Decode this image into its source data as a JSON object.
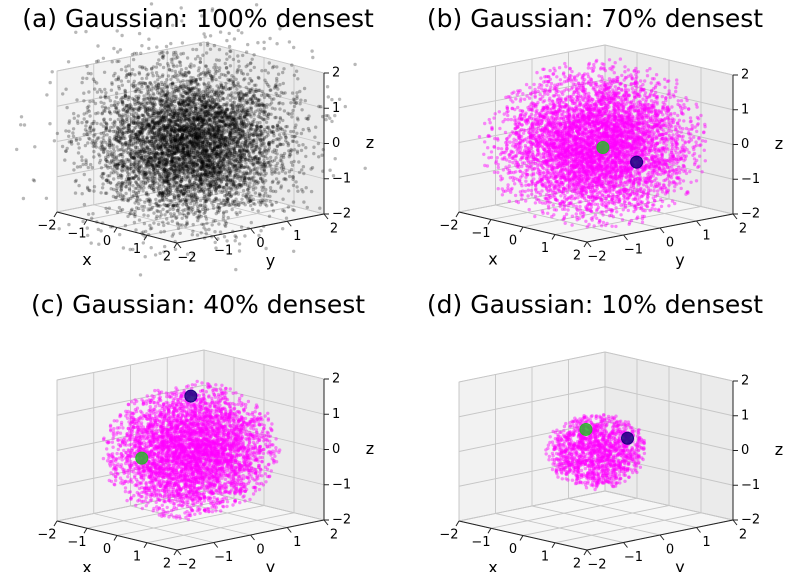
{
  "chart_data": [
    {
      "type": "scatter",
      "projection": "3d",
      "title": "(a) Gaussian: 100% densest",
      "xlabel": "x",
      "ylabel": "y",
      "zlabel": "z",
      "xlim": [
        -2,
        2
      ],
      "ylim": [
        -2,
        2
      ],
      "zlim": [
        -2,
        2
      ],
      "xticks": [
        "−2",
        "−1",
        "0",
        "1",
        "2"
      ],
      "yticks": [
        "−2",
        "−1",
        "0",
        "1",
        "2"
      ],
      "zticks": [
        "−2",
        "−1",
        "0",
        "1",
        "2"
      ],
      "grid": true,
      "series": [
        {
          "role": "points",
          "color": "#000000",
          "fraction_kept": 1.0,
          "distribution": "standard normal (3D)"
        }
      ]
    },
    {
      "type": "scatter",
      "projection": "3d",
      "title": "(b) Gaussian: 70% densest",
      "xlabel": "x",
      "ylabel": "y",
      "zlabel": "z",
      "xlim": [
        -2,
        2
      ],
      "ylim": [
        -2,
        2
      ],
      "zlim": [
        -2,
        2
      ],
      "xticks": [
        "−2",
        "−1",
        "0",
        "1",
        "2"
      ],
      "yticks": [
        "−2",
        "−1",
        "0",
        "1",
        "2"
      ],
      "zticks": [
        "−2",
        "−1",
        "0",
        "1",
        "2"
      ],
      "grid": true,
      "series": [
        {
          "role": "points",
          "color": "#ff00ff",
          "fraction_kept": 0.7,
          "distribution": "standard normal (3D)"
        },
        {
          "role": "highlight",
          "color": "#1a0080",
          "x": -0.1,
          "y": 1.2,
          "z": -0.8
        },
        {
          "role": "highlight",
          "color": "#2bb52b",
          "x": 0.9,
          "y": -0.6,
          "z": 0.2
        }
      ]
    },
    {
      "type": "scatter",
      "projection": "3d",
      "title": "(c) Gaussian: 40% densest",
      "xlabel": "x",
      "ylabel": "y",
      "zlabel": "z",
      "xlim": [
        -2,
        2
      ],
      "ylim": [
        -2,
        2
      ],
      "zlim": [
        -2,
        2
      ],
      "xticks": [
        "−2",
        "−1",
        "0",
        "1",
        "2"
      ],
      "yticks": [
        "−2",
        "−1",
        "0",
        "1",
        "2"
      ],
      "zticks": [
        "−2",
        "−1",
        "0",
        "1",
        "2"
      ],
      "grid": true,
      "series": [
        {
          "role": "points",
          "color": "#ff00ff",
          "fraction_kept": 0.4,
          "distribution": "standard normal (3D)"
        },
        {
          "role": "highlight",
          "color": "#1a0080",
          "x": -0.6,
          "y": 0.5,
          "z": 1.3
        },
        {
          "role": "highlight",
          "color": "#2bb52b",
          "x": -0.4,
          "y": -1.0,
          "z": -0.1
        }
      ]
    },
    {
      "type": "scatter",
      "projection": "3d",
      "title": "(d) Gaussian: 10% densest",
      "xlabel": "x",
      "ylabel": "y",
      "zlabel": "z",
      "xlim": [
        -2,
        2
      ],
      "ylim": [
        -2,
        2
      ],
      "zlim": [
        -2,
        2
      ],
      "xticks": [
        "−2",
        "−1",
        "0",
        "1",
        "2"
      ],
      "yticks": [
        "−2",
        "−1",
        "0",
        "1",
        "2"
      ],
      "zticks": [
        "−2",
        "−1",
        "0",
        "1",
        "2"
      ],
      "grid": true,
      "series": [
        {
          "role": "points",
          "color": "#ff00ff",
          "fraction_kept": 0.1,
          "distribution": "standard normal (3D)"
        },
        {
          "role": "highlight",
          "color": "#1a0080",
          "x": 0.3,
          "y": 0.6,
          "z": 0.3
        },
        {
          "role": "highlight",
          "color": "#2bb52b",
          "x": -0.2,
          "y": -0.1,
          "z": 0.6
        }
      ]
    }
  ]
}
